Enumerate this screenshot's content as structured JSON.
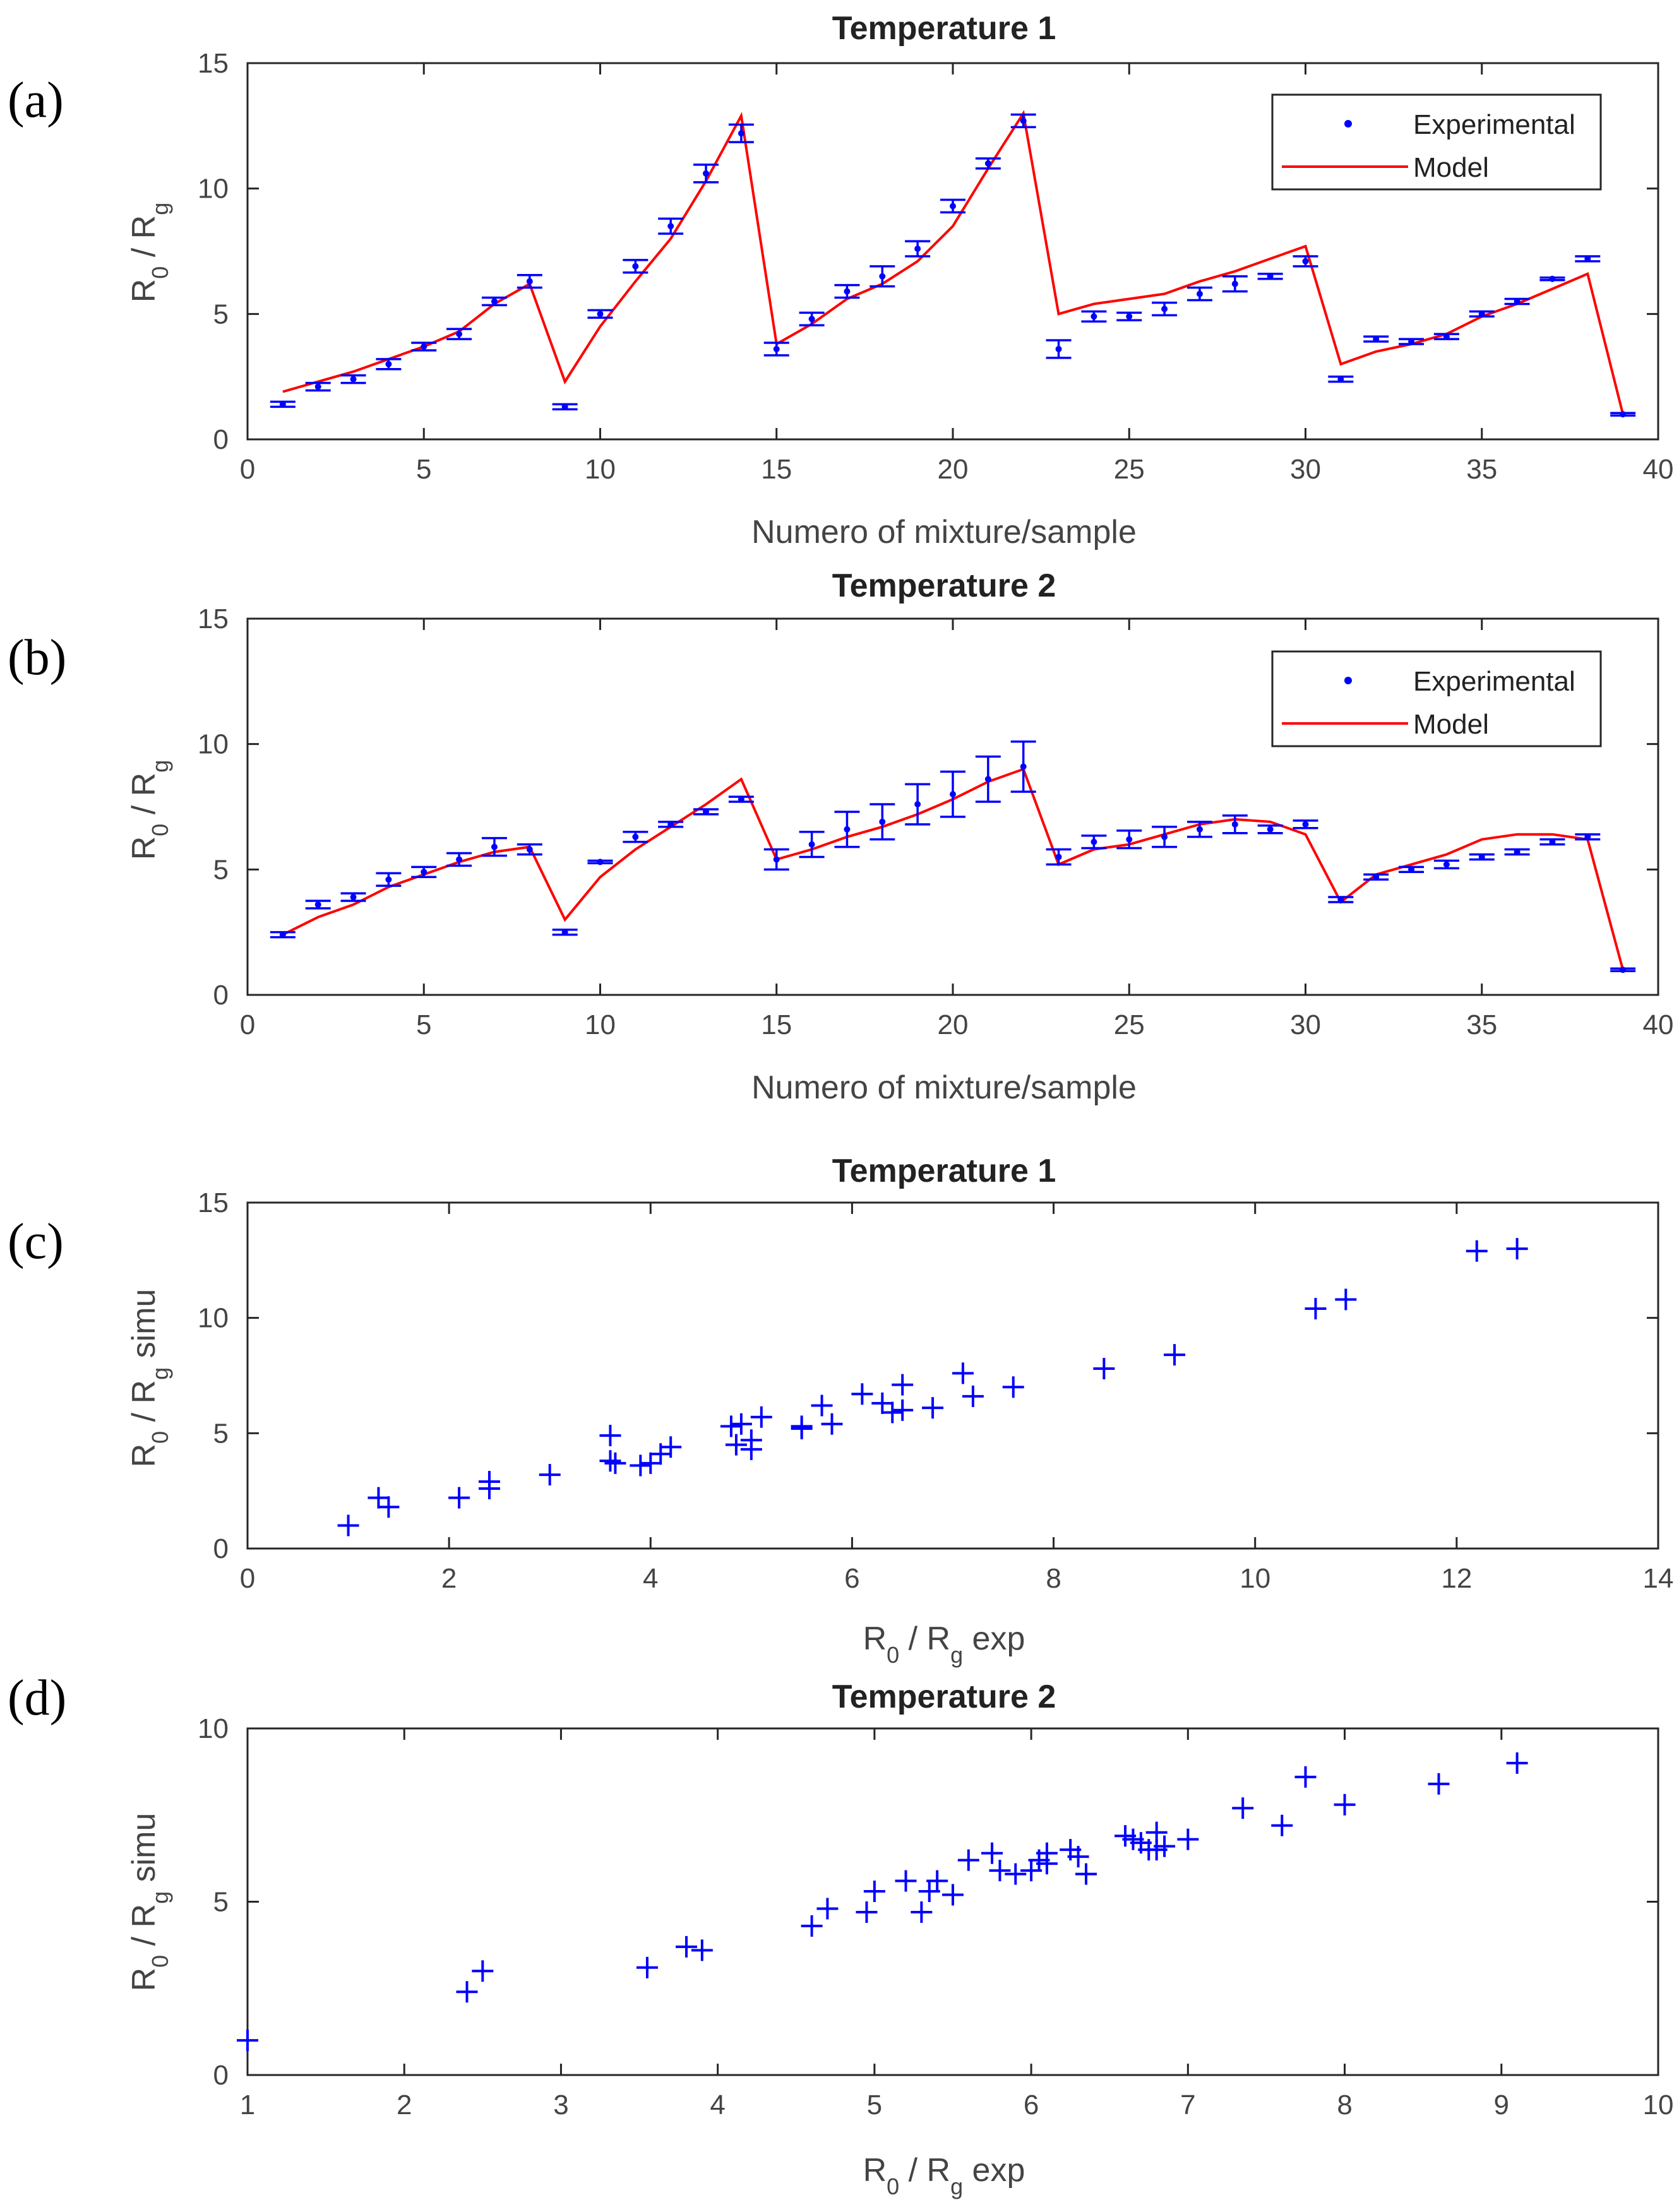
{
  "panels": [
    {
      "letter": "(a)"
    },
    {
      "letter": "(b)"
    },
    {
      "letter": "(c)"
    },
    {
      "letter": "(d)"
    }
  ],
  "colors": {
    "experimental": "#0000ff",
    "model": "#ff0000",
    "axis": "#262626"
  },
  "chart_data": [
    {
      "type": "line",
      "title": "Temperature 1",
      "xlabel": "Numero of mixture/sample",
      "ylabel_main": "R",
      "ylabel_sub1": "0",
      "ylabel_mid": " / R",
      "ylabel_sub2": "g",
      "ylabel_tail": "",
      "xlim": [
        0,
        40
      ],
      "ylim": [
        0,
        15
      ],
      "xticks": [
        0,
        5,
        10,
        15,
        20,
        25,
        30,
        35,
        40
      ],
      "yticks": [
        0,
        5,
        10,
        15
      ],
      "xtick_labels": [
        "0",
        "5",
        "10",
        "15",
        "20",
        "25",
        "30",
        "35",
        "40"
      ],
      "ytick_labels": [
        "0",
        "5",
        "10",
        "15"
      ],
      "legend": {
        "position": "top-right",
        "entries": [
          "Experimental",
          "Model"
        ]
      },
      "x": [
        1,
        2,
        3,
        4,
        5,
        6,
        7,
        8,
        9,
        10,
        11,
        12,
        13,
        14,
        15,
        16,
        17,
        18,
        19,
        20,
        21,
        22,
        23,
        24,
        25,
        26,
        27,
        28,
        29,
        30,
        31,
        32,
        33,
        34,
        35,
        36,
        37,
        38,
        39
      ],
      "series": [
        {
          "name": "Experimental",
          "values": [
            1.4,
            2.1,
            2.4,
            3.0,
            3.7,
            4.2,
            5.5,
            6.3,
            1.3,
            5.0,
            6.9,
            8.5,
            10.6,
            12.2,
            3.6,
            4.8,
            5.9,
            6.5,
            7.6,
            9.3,
            11.0,
            12.7,
            3.6,
            4.9,
            4.9,
            5.2,
            5.8,
            6.2,
            6.5,
            7.1,
            2.4,
            4.0,
            3.9,
            4.1,
            5.0,
            5.5,
            6.4,
            7.2,
            1.0
          ],
          "errors": [
            0.1,
            0.15,
            0.15,
            0.2,
            0.15,
            0.2,
            0.15,
            0.25,
            0.1,
            0.15,
            0.25,
            0.3,
            0.35,
            0.35,
            0.25,
            0.25,
            0.25,
            0.4,
            0.3,
            0.25,
            0.2,
            0.25,
            0.35,
            0.2,
            0.15,
            0.25,
            0.25,
            0.3,
            0.1,
            0.2,
            0.1,
            0.1,
            0.1,
            0.1,
            0.1,
            0.1,
            0.05,
            0.1,
            0.05
          ]
        },
        {
          "name": "Model",
          "values": [
            1.9,
            2.3,
            2.7,
            3.2,
            3.7,
            4.3,
            5.4,
            6.2,
            2.3,
            4.5,
            6.3,
            8.0,
            10.3,
            12.9,
            3.8,
            4.6,
            5.6,
            6.2,
            7.1,
            8.5,
            10.8,
            13.0,
            5.0,
            5.4,
            5.6,
            5.8,
            6.3,
            6.7,
            7.2,
            7.7,
            3.0,
            3.5,
            3.8,
            4.2,
            4.9,
            5.4,
            6.0,
            6.6,
            1.0
          ]
        }
      ]
    },
    {
      "type": "line",
      "title": "Temperature 2",
      "xlabel": "Numero of mixture/sample",
      "ylabel_main": "R",
      "ylabel_sub1": "0",
      "ylabel_mid": " / R",
      "ylabel_sub2": "g",
      "ylabel_tail": "",
      "xlim": [
        0,
        40
      ],
      "ylim": [
        0,
        15
      ],
      "xticks": [
        0,
        5,
        10,
        15,
        20,
        25,
        30,
        35,
        40
      ],
      "yticks": [
        0,
        5,
        10,
        15
      ],
      "xtick_labels": [
        "0",
        "5",
        "10",
        "15",
        "20",
        "25",
        "30",
        "35",
        "40"
      ],
      "ytick_labels": [
        "0",
        "5",
        "10",
        "15"
      ],
      "legend": {
        "position": "top-right",
        "entries": [
          "Experimental",
          "Model"
        ]
      },
      "x": [
        1,
        2,
        3,
        4,
        5,
        6,
        7,
        8,
        9,
        10,
        11,
        12,
        13,
        14,
        15,
        16,
        17,
        18,
        19,
        20,
        21,
        22,
        23,
        24,
        25,
        26,
        27,
        28,
        29,
        30,
        31,
        32,
        33,
        34,
        35,
        36,
        37,
        38,
        39
      ],
      "series": [
        {
          "name": "Experimental",
          "values": [
            2.4,
            3.6,
            3.9,
            4.6,
            4.9,
            5.4,
            5.9,
            5.8,
            2.5,
            5.3,
            6.3,
            6.8,
            7.3,
            7.8,
            5.4,
            6.0,
            6.6,
            6.9,
            7.6,
            8.0,
            8.6,
            9.1,
            5.5,
            6.1,
            6.2,
            6.3,
            6.6,
            6.8,
            6.6,
            6.8,
            3.8,
            4.7,
            5.0,
            5.2,
            5.5,
            5.7,
            6.1,
            6.3,
            1.0
          ],
          "errors": [
            0.1,
            0.15,
            0.15,
            0.25,
            0.2,
            0.25,
            0.35,
            0.2,
            0.1,
            0.05,
            0.2,
            0.1,
            0.1,
            0.1,
            0.4,
            0.5,
            0.7,
            0.7,
            0.8,
            0.9,
            0.9,
            1.0,
            0.3,
            0.25,
            0.35,
            0.4,
            0.3,
            0.35,
            0.15,
            0.15,
            0.1,
            0.1,
            0.1,
            0.15,
            0.1,
            0.1,
            0.1,
            0.1,
            0.05
          ]
        },
        {
          "name": "Model",
          "values": [
            2.4,
            3.1,
            3.6,
            4.3,
            4.8,
            5.3,
            5.7,
            5.9,
            3.0,
            4.7,
            5.8,
            6.7,
            7.6,
            8.6,
            5.4,
            5.8,
            6.3,
            6.7,
            7.2,
            7.8,
            8.5,
            9.0,
            5.2,
            5.8,
            6.0,
            6.4,
            6.8,
            7.0,
            6.9,
            6.4,
            3.7,
            4.8,
            5.2,
            5.6,
            6.2,
            6.4,
            6.4,
            6.2,
            1.0
          ]
        }
      ]
    },
    {
      "type": "scatter",
      "title": "Temperature 1",
      "xlabel_main": "R",
      "xlabel_sub1": "0",
      "xlabel_mid": " / R",
      "xlabel_sub2": "g",
      "xlabel_tail": " exp",
      "ylabel_main": "R",
      "ylabel_sub1": "0",
      "ylabel_mid": " / R",
      "ylabel_sub2": "g",
      "ylabel_tail": " simu",
      "xlim": [
        0,
        14
      ],
      "ylim": [
        0,
        15
      ],
      "xticks": [
        0,
        2,
        4,
        6,
        8,
        10,
        12,
        14
      ],
      "yticks": [
        0,
        5,
        10,
        15
      ],
      "xtick_labels": [
        "0",
        "2",
        "4",
        "6",
        "8",
        "10",
        "12",
        "14"
      ],
      "ytick_labels": [
        "0",
        "5",
        "10",
        "15"
      ],
      "points": [
        [
          1.0,
          1.0
        ],
        [
          1.3,
          2.2
        ],
        [
          1.4,
          1.8
        ],
        [
          2.1,
          2.2
        ],
        [
          2.4,
          2.6
        ],
        [
          2.4,
          2.9
        ],
        [
          3.0,
          3.2
        ],
        [
          3.6,
          4.9
        ],
        [
          3.6,
          3.8
        ],
        [
          3.65,
          3.7
        ],
        [
          3.9,
          3.6
        ],
        [
          4.0,
          3.7
        ],
        [
          4.1,
          4.1
        ],
        [
          4.2,
          4.4
        ],
        [
          4.8,
          5.3
        ],
        [
          4.9,
          5.4
        ],
        [
          4.85,
          4.5
        ],
        [
          5.0,
          4.3
        ],
        [
          5.0,
          4.7
        ],
        [
          5.1,
          5.7
        ],
        [
          5.5,
          5.2
        ],
        [
          5.5,
          5.3
        ],
        [
          5.7,
          6.2
        ],
        [
          5.8,
          5.4
        ],
        [
          6.1,
          6.7
        ],
        [
          6.3,
          6.3
        ],
        [
          6.4,
          5.9
        ],
        [
          6.5,
          7.1
        ],
        [
          6.5,
          6.0
        ],
        [
          6.8,
          6.1
        ],
        [
          7.1,
          7.6
        ],
        [
          7.2,
          6.6
        ],
        [
          7.6,
          7.0
        ],
        [
          8.5,
          7.8
        ],
        [
          9.2,
          8.4
        ],
        [
          10.6,
          10.4
        ],
        [
          10.9,
          10.8
        ],
        [
          12.2,
          12.9
        ],
        [
          12.6,
          13.0
        ]
      ]
    },
    {
      "type": "scatter",
      "title": "Temperature 2",
      "xlabel_main": "R",
      "xlabel_sub1": "0",
      "xlabel_mid": " / R",
      "xlabel_sub2": "g",
      "xlabel_tail": " exp",
      "ylabel_main": "R",
      "ylabel_sub1": "0",
      "ylabel_mid": " / R",
      "ylabel_sub2": "g",
      "ylabel_tail": " simu",
      "xlim": [
        1,
        10
      ],
      "ylim": [
        0,
        10
      ],
      "xticks": [
        1,
        2,
        3,
        4,
        5,
        6,
        7,
        8,
        9,
        10
      ],
      "yticks": [
        0,
        5,
        10
      ],
      "xtick_labels": [
        "1",
        "2",
        "3",
        "4",
        "5",
        "6",
        "7",
        "8",
        "9",
        "10"
      ],
      "ytick_labels": [
        "0",
        "5",
        "10"
      ],
      "points": [
        [
          1.0,
          1.0
        ],
        [
          2.4,
          2.4
        ],
        [
          2.5,
          3.0
        ],
        [
          3.55,
          3.1
        ],
        [
          3.8,
          3.7
        ],
        [
          3.9,
          3.6
        ],
        [
          4.6,
          4.3
        ],
        [
          4.7,
          4.8
        ],
        [
          4.95,
          4.7
        ],
        [
          5.0,
          5.3
        ],
        [
          5.2,
          5.6
        ],
        [
          5.3,
          4.7
        ],
        [
          5.35,
          5.3
        ],
        [
          5.4,
          5.6
        ],
        [
          5.5,
          5.2
        ],
        [
          5.6,
          6.2
        ],
        [
          5.75,
          6.4
        ],
        [
          5.8,
          5.9
        ],
        [
          5.9,
          5.8
        ],
        [
          6.0,
          5.9
        ],
        [
          6.05,
          6.2
        ],
        [
          6.1,
          6.4
        ],
        [
          6.1,
          6.1
        ],
        [
          6.25,
          6.5
        ],
        [
          6.3,
          6.3
        ],
        [
          6.35,
          5.8
        ],
        [
          6.6,
          6.9
        ],
        [
          6.65,
          6.8
        ],
        [
          6.7,
          6.7
        ],
        [
          6.75,
          6.5
        ],
        [
          6.8,
          7.0
        ],
        [
          6.8,
          6.5
        ],
        [
          6.85,
          6.6
        ],
        [
          7.0,
          6.8
        ],
        [
          7.35,
          7.7
        ],
        [
          7.6,
          7.2
        ],
        [
          7.75,
          8.6
        ],
        [
          8.0,
          7.8
        ],
        [
          8.6,
          8.4
        ],
        [
          9.1,
          9.0
        ]
      ]
    }
  ]
}
